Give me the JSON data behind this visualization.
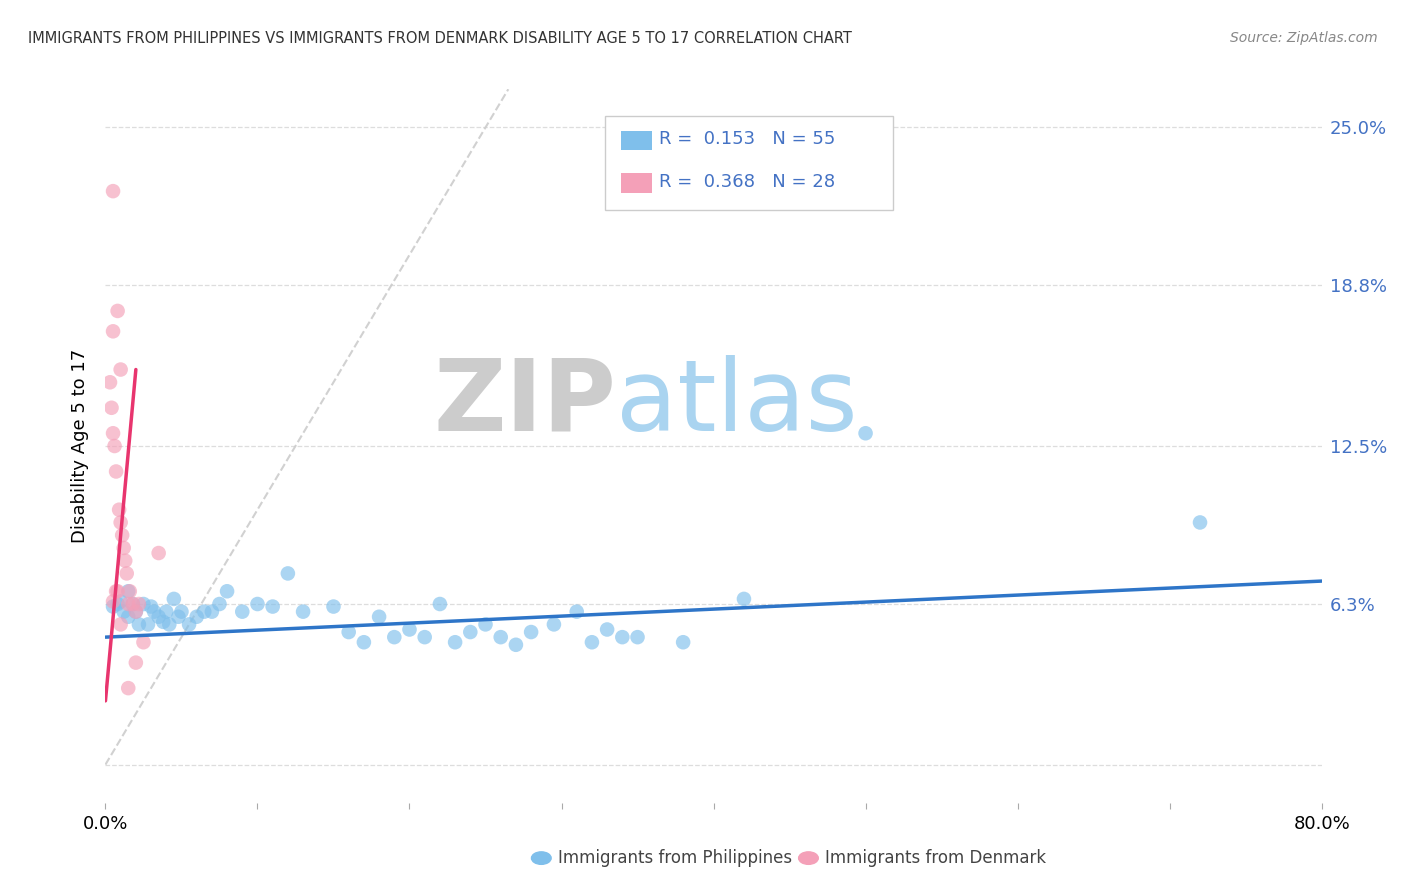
{
  "title": "IMMIGRANTS FROM PHILIPPINES VS IMMIGRANTS FROM DENMARK DISABILITY AGE 5 TO 17 CORRELATION CHART",
  "source": "Source: ZipAtlas.com",
  "ylabel": "Disability Age 5 to 17",
  "xmin": 0.0,
  "xmax": 0.8,
  "ymin": -0.015,
  "ymax": 0.265,
  "ytick_vals": [
    0.0,
    0.063,
    0.125,
    0.188,
    0.25
  ],
  "ytick_labels_right": [
    "",
    "6.3%",
    "12.5%",
    "18.8%",
    "25.0%"
  ],
  "xtick_vals": [
    0.0,
    0.1,
    0.2,
    0.3,
    0.4,
    0.5,
    0.6,
    0.7,
    0.8
  ],
  "xtick_labels": [
    "0.0%",
    "",
    "",
    "",
    "",
    "",
    "",
    "",
    "80.0%"
  ],
  "blue_color": "#7fbfeb",
  "pink_color": "#f4a0b8",
  "blue_line_color": "#2e75c8",
  "pink_line_color": "#e8356e",
  "diag_color": "#cccccc",
  "r_blue": "0.153",
  "n_blue": "55",
  "r_pink": "0.368",
  "n_pink": "28",
  "blue_scatter_x": [
    0.005,
    0.008,
    0.01,
    0.012,
    0.015,
    0.015,
    0.018,
    0.02,
    0.022,
    0.025,
    0.028,
    0.03,
    0.032,
    0.035,
    0.038,
    0.04,
    0.042,
    0.045,
    0.048,
    0.05,
    0.055,
    0.06,
    0.065,
    0.07,
    0.075,
    0.08,
    0.09,
    0.1,
    0.11,
    0.12,
    0.13,
    0.15,
    0.16,
    0.17,
    0.18,
    0.19,
    0.2,
    0.21,
    0.22,
    0.23,
    0.24,
    0.25,
    0.26,
    0.27,
    0.28,
    0.295,
    0.31,
    0.32,
    0.33,
    0.34,
    0.35,
    0.38,
    0.42,
    0.5,
    0.72
  ],
  "blue_scatter_y": [
    0.062,
    0.063,
    0.064,
    0.06,
    0.058,
    0.068,
    0.063,
    0.06,
    0.055,
    0.063,
    0.055,
    0.062,
    0.06,
    0.058,
    0.056,
    0.06,
    0.055,
    0.065,
    0.058,
    0.06,
    0.055,
    0.058,
    0.06,
    0.06,
    0.063,
    0.068,
    0.06,
    0.063,
    0.062,
    0.075,
    0.06,
    0.062,
    0.052,
    0.048,
    0.058,
    0.05,
    0.053,
    0.05,
    0.063,
    0.048,
    0.052,
    0.055,
    0.05,
    0.047,
    0.052,
    0.055,
    0.06,
    0.048,
    0.053,
    0.05,
    0.05,
    0.048,
    0.065,
    0.13,
    0.095
  ],
  "pink_scatter_x": [
    0.003,
    0.004,
    0.005,
    0.005,
    0.005,
    0.006,
    0.007,
    0.007,
    0.008,
    0.008,
    0.009,
    0.01,
    0.01,
    0.011,
    0.012,
    0.013,
    0.014,
    0.015,
    0.016,
    0.018,
    0.02,
    0.02,
    0.022,
    0.025,
    0.035,
    0.005,
    0.01,
    0.015
  ],
  "pink_scatter_y": [
    0.15,
    0.14,
    0.225,
    0.17,
    0.13,
    0.125,
    0.115,
    0.068,
    0.178,
    0.068,
    0.1,
    0.155,
    0.095,
    0.09,
    0.085,
    0.08,
    0.075,
    0.063,
    0.068,
    0.063,
    0.06,
    0.04,
    0.063,
    0.048,
    0.083,
    0.064,
    0.055,
    0.03
  ],
  "blue_trend_x": [
    0.0,
    0.8
  ],
  "blue_trend_y": [
    0.05,
    0.072
  ],
  "pink_trend_x": [
    0.0,
    0.02
  ],
  "pink_trend_y": [
    0.025,
    0.155
  ],
  "watermark_zip": "ZIP",
  "watermark_atlas": "atlas",
  "watermark_color_zip": "#cccccc",
  "watermark_color_atlas": "#aad4f0",
  "legend_label_blue": "Immigrants from Philippines",
  "legend_label_pink": "Immigrants from Denmark",
  "axis_label_color": "#4472c4",
  "title_color": "#333333",
  "source_color": "#888888",
  "grid_color": "#dddddd",
  "background_color": "#ffffff"
}
